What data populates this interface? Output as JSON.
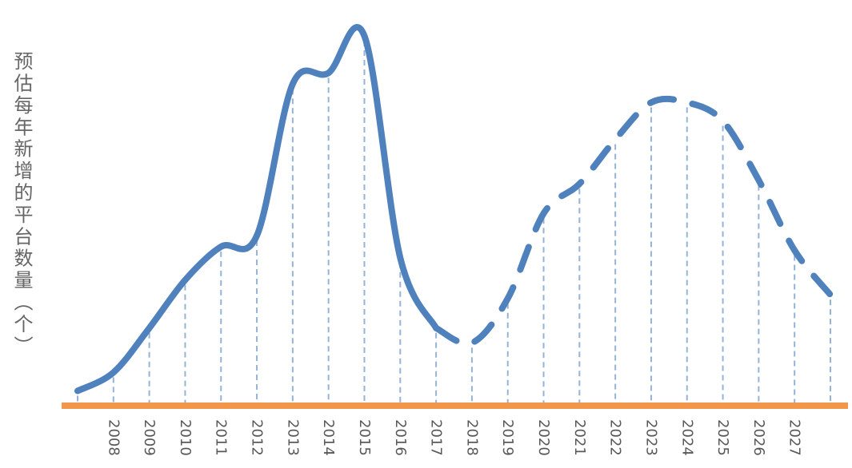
{
  "chart_data": {
    "type": "line",
    "title": "",
    "xlabel": "",
    "ylabel": "预估每年新增的平台数量（个）",
    "xlim": [
      2007,
      2028
    ],
    "ylim": [
      0,
      100
    ],
    "y_tick_labels_shown": false,
    "grid": false,
    "legend": "none",
    "drop_lines": true,
    "xticklabels": [
      "2008",
      "2009",
      "2010",
      "2011",
      "2012",
      "2013",
      "2014",
      "2015",
      "2016",
      "2017",
      "2018",
      "2019",
      "2020",
      "2021",
      "2022",
      "2023",
      "2024",
      "2025",
      "2026",
      "2027"
    ],
    "series": [
      {
        "line_style": "solid",
        "x": [
          2007,
          2008,
          2009,
          2010,
          2011,
          2012,
          2013,
          2014,
          2015,
          2016,
          2017
        ],
        "values": [
          4,
          9,
          21,
          34,
          43,
          46,
          87,
          90,
          100,
          40,
          21
        ]
      },
      {
        "line_style": "dashed",
        "x": [
          2017,
          2018,
          2019,
          2020,
          2021,
          2022,
          2023,
          2024,
          2025,
          2026,
          2027,
          2028
        ],
        "values": [
          21,
          17,
          29,
          52,
          60,
          72,
          82,
          82,
          77,
          61,
          42,
          30
        ]
      }
    ],
    "colors": {
      "line": "#4F81BD",
      "drop_line": "#95B3D7",
      "x_axis": "#F2964A",
      "text": "#595959"
    }
  }
}
